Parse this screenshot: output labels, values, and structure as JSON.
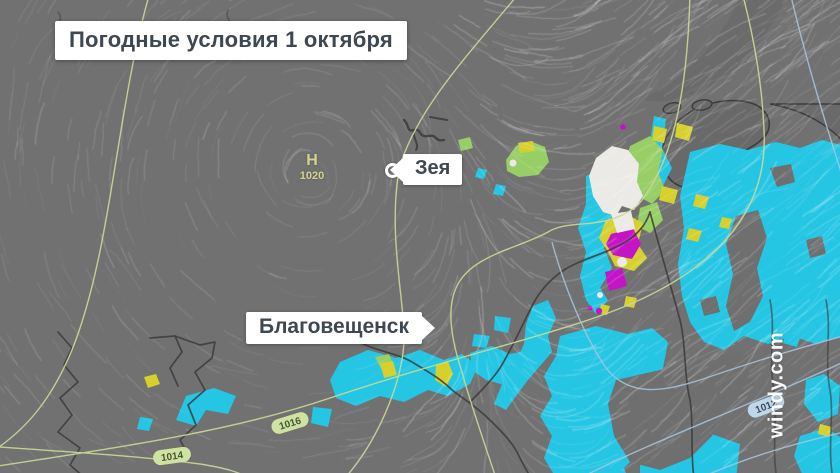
{
  "title": "Погодные условия 1 октября",
  "map": {
    "watermark": "windy.com",
    "pressure_center": {
      "letter": "Н",
      "value": "1020"
    },
    "isobar_labels": {
      "a": "1016",
      "b": "1014",
      "c": "1012"
    },
    "cities": {
      "zeya": "Зея",
      "blagoveshchensk": "Благовещенск"
    },
    "colors": {
      "background": "#717171",
      "rain": "#25c6e4",
      "mixed_rain_snow": "#97cf66",
      "sleet": "#d5d02c",
      "hail": "#c514c5",
      "snow": "#eceae6",
      "isobar_high": "#c9db97",
      "isobar_low": "#a9c6de",
      "pill_high_bg": "#cfe3a1",
      "pill_low_bg": "#bed7ea",
      "pressure_center_text": "#d8d18e",
      "label_text": "#3d4852",
      "border_line": "#3b3b3b"
    }
  }
}
